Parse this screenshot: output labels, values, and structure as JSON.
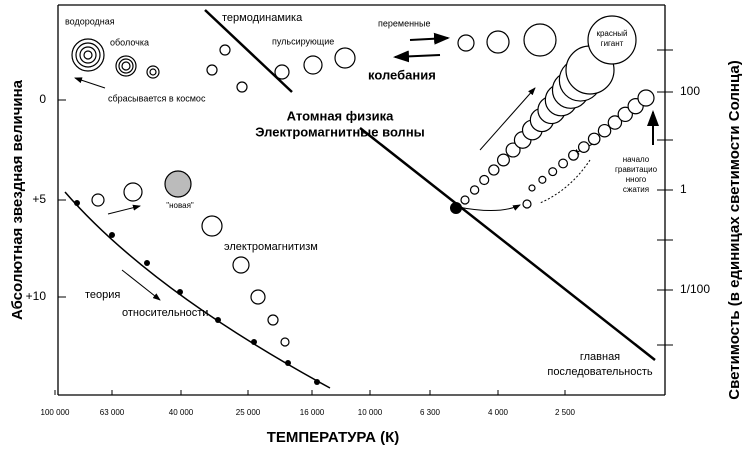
{
  "axes": {
    "left_label": "Абсолютная звездная величина",
    "right_label": "Светимость (в единицах светимости Солнца)",
    "x_label": "ТЕМПЕРАТУРА (К)",
    "x_ticks": [
      "100 000",
      "63 000",
      "40 000",
      "25 000",
      "16 000",
      "10 000",
      "6 300",
      "4 000",
      "2 500"
    ],
    "left_ticks": [
      "0",
      "+5",
      "+10"
    ],
    "right_ticks": [
      "100",
      "1",
      "1/100"
    ]
  },
  "annotations": {
    "hydrogen": "водородная",
    "shell": "оболочка",
    "ejected": "сбрасывается в космос",
    "thermodynamics": "термодинамика",
    "pulsating": "пульсирующие",
    "variables": "переменные",
    "oscillations": "колебания",
    "atomic": "Атомная физика",
    "waves": "Электромагнитные волны",
    "red_giant": [
      "красный",
      "гигант"
    ],
    "collapse": [
      "начало",
      "гравитацио",
      "нного",
      "сжатия"
    ],
    "nova": "\"новая\"",
    "electromagnetism": "электромагнитизм",
    "theory": "теория",
    "relativity": "относительности",
    "main": "главная",
    "sequence": "последовательность"
  }
}
